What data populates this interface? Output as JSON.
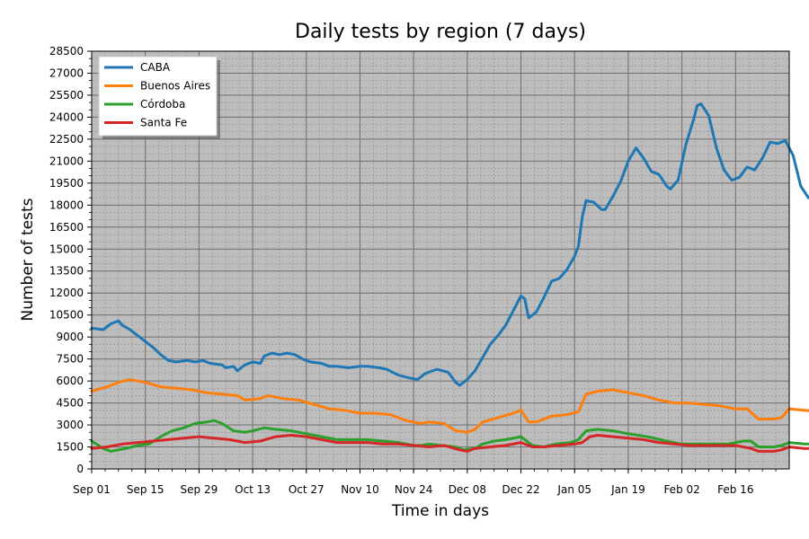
{
  "chart_data": {
    "type": "line",
    "title": "Daily tests by region (7 days)",
    "xlabel": "Time in days",
    "ylabel": "Number of tests",
    "ylim": [
      0,
      28500
    ],
    "y_ticks": [
      0,
      1500,
      3000,
      4500,
      6000,
      7500,
      9000,
      10500,
      12000,
      13500,
      15000,
      16500,
      18000,
      19500,
      21000,
      22500,
      24000,
      25500,
      27000,
      28500
    ],
    "x_tick_labels": [
      "Sep 01",
      "Sep 15",
      "Sep 29",
      "Oct 13",
      "Oct 27",
      "Nov 10",
      "Nov 24",
      "Dec 08",
      "Dec 22",
      "Jan 05",
      "Jan 19",
      "Feb 02",
      "Feb 16"
    ],
    "x_tick_days": [
      0,
      14,
      28,
      42,
      56,
      70,
      84,
      98,
      112,
      126,
      140,
      154,
      168
    ],
    "x_range_days": [
      0,
      182
    ],
    "grid": true,
    "legend_position": "top-left",
    "series": [
      {
        "name": "CABA",
        "color": "#1f77b4",
        "points": [
          [
            0,
            9600
          ],
          [
            3,
            9500
          ],
          [
            5,
            9900
          ],
          [
            7,
            10100
          ],
          [
            8,
            9800
          ],
          [
            10,
            9500
          ],
          [
            13,
            8900
          ],
          [
            14,
            8700
          ],
          [
            16,
            8300
          ],
          [
            18,
            7800
          ],
          [
            20,
            7400
          ],
          [
            22,
            7300
          ],
          [
            25,
            7400
          ],
          [
            27,
            7300
          ],
          [
            29,
            7400
          ],
          [
            31,
            7200
          ],
          [
            34,
            7100
          ],
          [
            35,
            6900
          ],
          [
            37,
            7000
          ],
          [
            38,
            6700
          ],
          [
            40,
            7100
          ],
          [
            42,
            7300
          ],
          [
            44,
            7200
          ],
          [
            45,
            7700
          ],
          [
            47,
            7900
          ],
          [
            49,
            7800
          ],
          [
            51,
            7900
          ],
          [
            53,
            7800
          ],
          [
            55,
            7500
          ],
          [
            57,
            7300
          ],
          [
            60,
            7200
          ],
          [
            62,
            7000
          ],
          [
            64,
            7000
          ],
          [
            67,
            6900
          ],
          [
            70,
            7000
          ],
          [
            72,
            7000
          ],
          [
            75,
            6900
          ],
          [
            77,
            6800
          ],
          [
            80,
            6400
          ],
          [
            83,
            6200
          ],
          [
            85,
            6100
          ],
          [
            87,
            6500
          ],
          [
            90,
            6800
          ],
          [
            93,
            6600
          ],
          [
            95,
            5900
          ],
          [
            96,
            5700
          ],
          [
            98,
            6100
          ],
          [
            100,
            6700
          ],
          [
            102,
            7600
          ],
          [
            104,
            8500
          ],
          [
            106,
            9100
          ],
          [
            108,
            9800
          ],
          [
            110,
            10800
          ],
          [
            112,
            11800
          ],
          [
            113,
            11600
          ],
          [
            114,
            10300
          ],
          [
            116,
            10700
          ],
          [
            118,
            11700
          ],
          [
            120,
            12800
          ],
          [
            122,
            13000
          ],
          [
            124,
            13600
          ],
          [
            126,
            14500
          ],
          [
            127,
            15200
          ],
          [
            128,
            17200
          ],
          [
            129,
            18300
          ],
          [
            131,
            18200
          ],
          [
            133,
            17700
          ],
          [
            134,
            17700
          ],
          [
            136,
            18600
          ],
          [
            138,
            19600
          ],
          [
            140,
            21000
          ],
          [
            142,
            21900
          ],
          [
            144,
            21200
          ],
          [
            146,
            20300
          ],
          [
            148,
            20100
          ],
          [
            150,
            19300
          ],
          [
            151,
            19100
          ],
          [
            153,
            19700
          ],
          [
            155,
            22100
          ],
          [
            157,
            23800
          ],
          [
            158,
            24800
          ],
          [
            159,
            24900
          ],
          [
            161,
            24100
          ],
          [
            163,
            21900
          ],
          [
            165,
            20400
          ],
          [
            167,
            19700
          ],
          [
            169,
            19900
          ],
          [
            171,
            20600
          ],
          [
            173,
            20400
          ],
          [
            175,
            21200
          ],
          [
            177,
            22300
          ],
          [
            179,
            22200
          ],
          [
            181,
            22400
          ],
          [
            183,
            21400
          ],
          [
            185,
            19300
          ],
          [
            187,
            18500
          ],
          [
            189,
            18600
          ],
          [
            191,
            17300
          ],
          [
            193,
            16800
          ],
          [
            194,
            16600
          ]
        ]
      },
      {
        "name": "Buenos Aires",
        "color": "#ff7f0e",
        "points": [
          [
            0,
            5300
          ],
          [
            4,
            5600
          ],
          [
            7,
            5900
          ],
          [
            10,
            6100
          ],
          [
            14,
            5900
          ],
          [
            18,
            5600
          ],
          [
            22,
            5500
          ],
          [
            26,
            5400
          ],
          [
            30,
            5200
          ],
          [
            34,
            5100
          ],
          [
            38,
            5000
          ],
          [
            40,
            4700
          ],
          [
            44,
            4800
          ],
          [
            46,
            5000
          ],
          [
            50,
            4800
          ],
          [
            54,
            4700
          ],
          [
            58,
            4400
          ],
          [
            62,
            4100
          ],
          [
            66,
            4000
          ],
          [
            70,
            3800
          ],
          [
            74,
            3800
          ],
          [
            78,
            3700
          ],
          [
            82,
            3300
          ],
          [
            86,
            3100
          ],
          [
            88,
            3200
          ],
          [
            92,
            3100
          ],
          [
            95,
            2600
          ],
          [
            98,
            2500
          ],
          [
            100,
            2700
          ],
          [
            102,
            3200
          ],
          [
            106,
            3500
          ],
          [
            110,
            3800
          ],
          [
            112,
            4000
          ],
          [
            114,
            3200
          ],
          [
            116,
            3200
          ],
          [
            120,
            3600
          ],
          [
            124,
            3700
          ],
          [
            127,
            3900
          ],
          [
            129,
            5100
          ],
          [
            132,
            5300
          ],
          [
            136,
            5400
          ],
          [
            140,
            5200
          ],
          [
            144,
            5000
          ],
          [
            148,
            4700
          ],
          [
            152,
            4500
          ],
          [
            156,
            4500
          ],
          [
            160,
            4400
          ],
          [
            164,
            4300
          ],
          [
            168,
            4100
          ],
          [
            171,
            4100
          ],
          [
            174,
            3400
          ],
          [
            178,
            3400
          ],
          [
            180,
            3500
          ],
          [
            182,
            4100
          ],
          [
            186,
            4000
          ],
          [
            190,
            3900
          ],
          [
            194,
            3700
          ]
        ]
      },
      {
        "name": "Córdoba",
        "color": "#2ca02c",
        "points": [
          [
            0,
            1900
          ],
          [
            3,
            1400
          ],
          [
            5,
            1200
          ],
          [
            7,
            1300
          ],
          [
            9,
            1400
          ],
          [
            12,
            1600
          ],
          [
            15,
            1700
          ],
          [
            18,
            2200
          ],
          [
            21,
            2600
          ],
          [
            24,
            2800
          ],
          [
            27,
            3100
          ],
          [
            30,
            3200
          ],
          [
            32,
            3300
          ],
          [
            34,
            3100
          ],
          [
            37,
            2600
          ],
          [
            40,
            2500
          ],
          [
            42,
            2600
          ],
          [
            45,
            2800
          ],
          [
            48,
            2700
          ],
          [
            52,
            2600
          ],
          [
            56,
            2400
          ],
          [
            60,
            2200
          ],
          [
            64,
            2000
          ],
          [
            68,
            2000
          ],
          [
            72,
            2000
          ],
          [
            76,
            1900
          ],
          [
            80,
            1800
          ],
          [
            84,
            1600
          ],
          [
            86,
            1600
          ],
          [
            88,
            1700
          ],
          [
            91,
            1600
          ],
          [
            95,
            1500
          ],
          [
            97,
            1300
          ],
          [
            100,
            1400
          ],
          [
            102,
            1700
          ],
          [
            105,
            1900
          ],
          [
            108,
            2000
          ],
          [
            112,
            2200
          ],
          [
            115,
            1600
          ],
          [
            118,
            1500
          ],
          [
            121,
            1700
          ],
          [
            125,
            1800
          ],
          [
            127,
            2000
          ],
          [
            129,
            2600
          ],
          [
            132,
            2700
          ],
          [
            136,
            2600
          ],
          [
            140,
            2400
          ],
          [
            145,
            2200
          ],
          [
            150,
            1900
          ],
          [
            154,
            1700
          ],
          [
            158,
            1700
          ],
          [
            162,
            1700
          ],
          [
            166,
            1700
          ],
          [
            170,
            1900
          ],
          [
            172,
            1900
          ],
          [
            174,
            1500
          ],
          [
            178,
            1500
          ],
          [
            180,
            1600
          ],
          [
            182,
            1800
          ],
          [
            186,
            1700
          ],
          [
            190,
            1700
          ],
          [
            194,
            1800
          ]
        ]
      },
      {
        "name": "Santa Fe",
        "color": "#d62728",
        "points": [
          [
            0,
            1400
          ],
          [
            4,
            1500
          ],
          [
            8,
            1700
          ],
          [
            12,
            1800
          ],
          [
            16,
            1900
          ],
          [
            20,
            2000
          ],
          [
            24,
            2100
          ],
          [
            28,
            2200
          ],
          [
            32,
            2100
          ],
          [
            36,
            2000
          ],
          [
            40,
            1800
          ],
          [
            44,
            1900
          ],
          [
            48,
            2200
          ],
          [
            52,
            2300
          ],
          [
            56,
            2200
          ],
          [
            60,
            2000
          ],
          [
            64,
            1800
          ],
          [
            68,
            1800
          ],
          [
            72,
            1800
          ],
          [
            76,
            1700
          ],
          [
            80,
            1700
          ],
          [
            84,
            1600
          ],
          [
            88,
            1500
          ],
          [
            92,
            1600
          ],
          [
            96,
            1300
          ],
          [
            98,
            1200
          ],
          [
            100,
            1400
          ],
          [
            104,
            1500
          ],
          [
            108,
            1600
          ],
          [
            112,
            1800
          ],
          [
            115,
            1500
          ],
          [
            118,
            1500
          ],
          [
            122,
            1600
          ],
          [
            126,
            1700
          ],
          [
            128,
            1800
          ],
          [
            130,
            2200
          ],
          [
            132,
            2300
          ],
          [
            136,
            2200
          ],
          [
            140,
            2100
          ],
          [
            144,
            2000
          ],
          [
            148,
            1800
          ],
          [
            152,
            1700
          ],
          [
            156,
            1600
          ],
          [
            160,
            1600
          ],
          [
            164,
            1600
          ],
          [
            168,
            1600
          ],
          [
            172,
            1400
          ],
          [
            174,
            1200
          ],
          [
            178,
            1200
          ],
          [
            180,
            1300
          ],
          [
            182,
            1500
          ],
          [
            186,
            1400
          ],
          [
            190,
            1400
          ],
          [
            194,
            1300
          ]
        ]
      }
    ]
  }
}
